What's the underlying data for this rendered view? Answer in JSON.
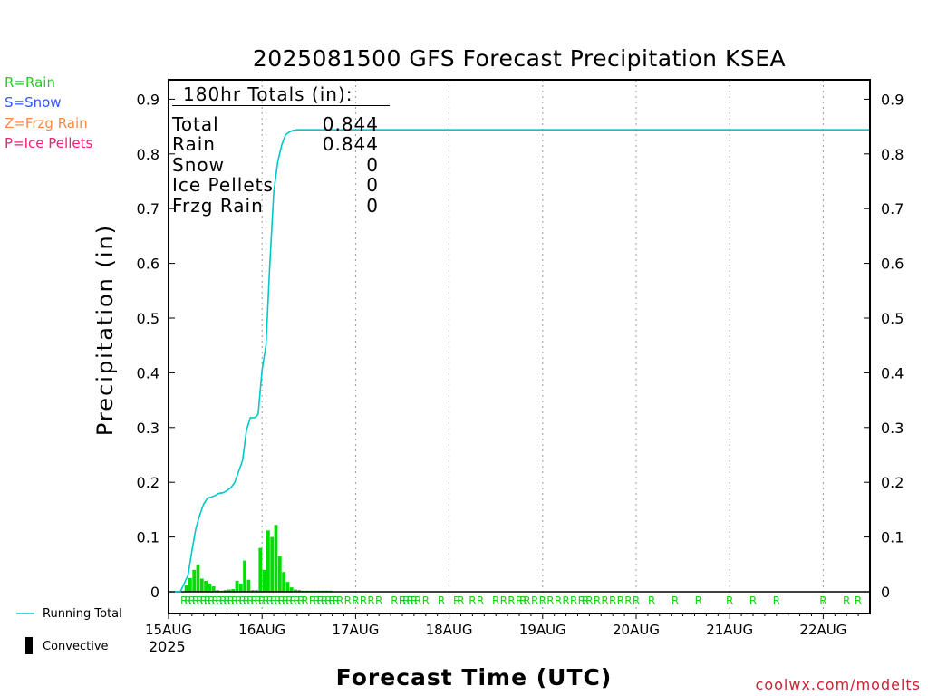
{
  "chart_data": {
    "type": "bar",
    "title": "2025081500 GFS Forecast Precipitation KSEA",
    "xlabel": "Forecast Time (UTC)",
    "ylabel": "Precipitation (in)",
    "ylim": [
      0,
      0.95
    ],
    "xlim_hours": [
      0,
      180
    ],
    "y_ticks": [
      "0",
      "0.1",
      "0.2",
      "0.3",
      "0.4",
      "0.5",
      "0.6",
      "0.7",
      "0.8",
      "0.9"
    ],
    "x_ticks": [
      "15AUG",
      "16AUG",
      "17AUG",
      "18AUG",
      "19AUG",
      "20AUG",
      "21AUG",
      "22AUG"
    ],
    "year_label": "2025",
    "precip_type_legend": [
      {
        "label": "R=Rain",
        "color": "#22cc22"
      },
      {
        "label": "S=Snow",
        "color": "#3355ff"
      },
      {
        "label": "Z=Frzg Rain",
        "color": "#ff8844"
      },
      {
        "label": "P=Ice Pellets",
        "color": "#ee2277"
      }
    ],
    "series_legend": [
      {
        "label": "Running Total",
        "color": "#00c8c8"
      },
      {
        "label": "Convective",
        "color": "#000000"
      }
    ],
    "totals": {
      "heading": "180hr Totals (in):",
      "rows": [
        {
          "label": "Total",
          "value": "0.844"
        },
        {
          "label": "Rain",
          "value": "0.844"
        },
        {
          "label": "Snow",
          "value": "0"
        },
        {
          "label": "Ice Pellets",
          "value": "0"
        },
        {
          "label": "Frzg Rain",
          "value": "0"
        }
      ]
    },
    "running_total": {
      "name": "Running Total",
      "x_hours": [
        0,
        3,
        5,
        6,
        7,
        8,
        9,
        10,
        11,
        12,
        13,
        14,
        15,
        16,
        17,
        18,
        19,
        20,
        21,
        22,
        22.5,
        23,
        24,
        25,
        26,
        27,
        28,
        29,
        30,
        31,
        32,
        33,
        34,
        35,
        36,
        180
      ],
      "values": [
        0,
        0,
        0.03,
        0.075,
        0.115,
        0.14,
        0.16,
        0.171,
        0.173,
        0.176,
        0.18,
        0.181,
        0.185,
        0.19,
        0.2,
        0.22,
        0.24,
        0.295,
        0.318,
        0.318,
        0.32,
        0.325,
        0.405,
        0.45,
        0.6,
        0.73,
        0.785,
        0.815,
        0.835,
        0.84,
        0.843,
        0.844,
        0.844,
        0.844,
        0.844,
        0.844
      ],
      "color": "#00c8c8"
    },
    "hourly_precip": {
      "name": "Rain",
      "x_hours": [
        5,
        6,
        7,
        8,
        9,
        10,
        11,
        12,
        13,
        14,
        15,
        16,
        17,
        18,
        19,
        20,
        21,
        22,
        23,
        24,
        25,
        26,
        27,
        28,
        29,
        30,
        31,
        32,
        33,
        34,
        35,
        36,
        37,
        38,
        39,
        40,
        41,
        42
      ],
      "values": [
        0.012,
        0.025,
        0.04,
        0.05,
        0.024,
        0.02,
        0.015,
        0.01,
        0.003,
        0.002,
        0.003,
        0.004,
        0.005,
        0.02,
        0.015,
        0.057,
        0.022,
        0.003,
        0.003,
        0.08,
        0.04,
        0.112,
        0.1,
        0.122,
        0.065,
        0.036,
        0.018,
        0.008,
        0.004,
        0.003,
        0.002,
        0.002,
        0.002,
        0.002,
        0.002,
        0.002,
        0.002,
        0.002
      ],
      "color": "#00dd00"
    },
    "rain_markers": {
      "symbol": "R",
      "x_hours": [
        4,
        5,
        6,
        7,
        8,
        9,
        10,
        11,
        12,
        13,
        14,
        15,
        16,
        17,
        18,
        19,
        20,
        21,
        22,
        23,
        24,
        25,
        26,
        27,
        28,
        29,
        30,
        31,
        32,
        33,
        34,
        35,
        37,
        38,
        39,
        40,
        41,
        42,
        43,
        44,
        46,
        48,
        50,
        52,
        54,
        58,
        60,
        61,
        62,
        63,
        64,
        66,
        70,
        74,
        75,
        78,
        80,
        84,
        86,
        88,
        90,
        91,
        92,
        94,
        96,
        98,
        100,
        102,
        104,
        106,
        107,
        108,
        110,
        112,
        114,
        116,
        118,
        120,
        124,
        130,
        136,
        144,
        150,
        156,
        168,
        174,
        177
      ]
    },
    "credit": "coolwx.com/modelts"
  }
}
